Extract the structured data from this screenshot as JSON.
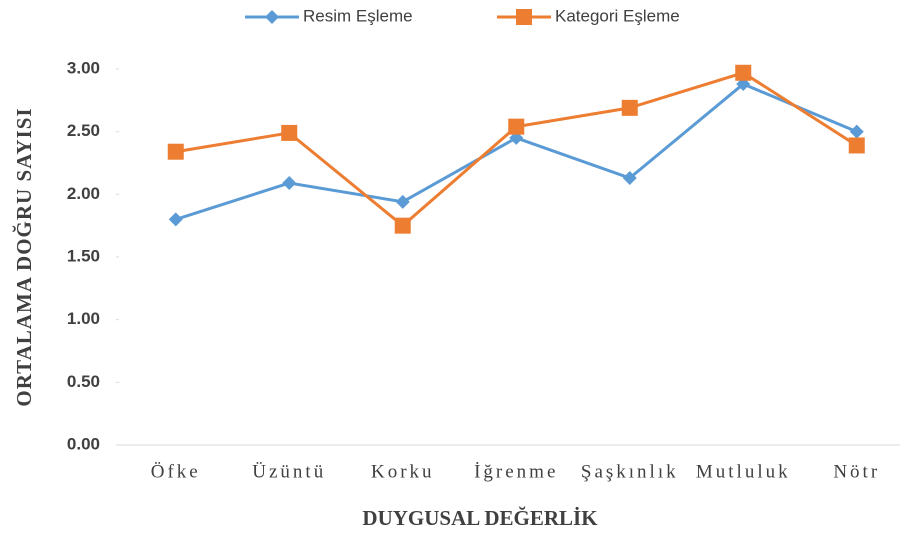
{
  "chart_data": {
    "type": "line",
    "x_label": "DUYGUSAL DEĞERLİK",
    "y_label": "ORTALAMA DOĞRU SAYISI",
    "categories": [
      "Öfke",
      "Üzüntü",
      "Korku",
      "İğrenme",
      "Şaşkınlık",
      "Mutluluk",
      "Nötr"
    ],
    "series": [
      {
        "name": "Resim Eşleme",
        "color": "#5b9bd5",
        "marker": "diamond",
        "values": [
          1.8,
          2.09,
          1.94,
          2.45,
          2.13,
          2.88,
          2.5
        ]
      },
      {
        "name": "Kategori Eşleme",
        "color": "#ed7d31",
        "marker": "square",
        "values": [
          2.34,
          2.49,
          1.75,
          2.54,
          2.69,
          2.97,
          2.39
        ]
      }
    ],
    "ylim": [
      0,
      3
    ],
    "yticks": [
      {
        "value": 0,
        "label": "0.00"
      },
      {
        "value": 0.5,
        "label": "0.50"
      },
      {
        "value": 1,
        "label": "1.00"
      },
      {
        "value": 1.5,
        "label": "1.50"
      },
      {
        "value": 2,
        "label": "2.00"
      },
      {
        "value": 2.5,
        "label": "2.50"
      },
      {
        "value": 3,
        "label": "3.00"
      }
    ],
    "legend": "top"
  }
}
